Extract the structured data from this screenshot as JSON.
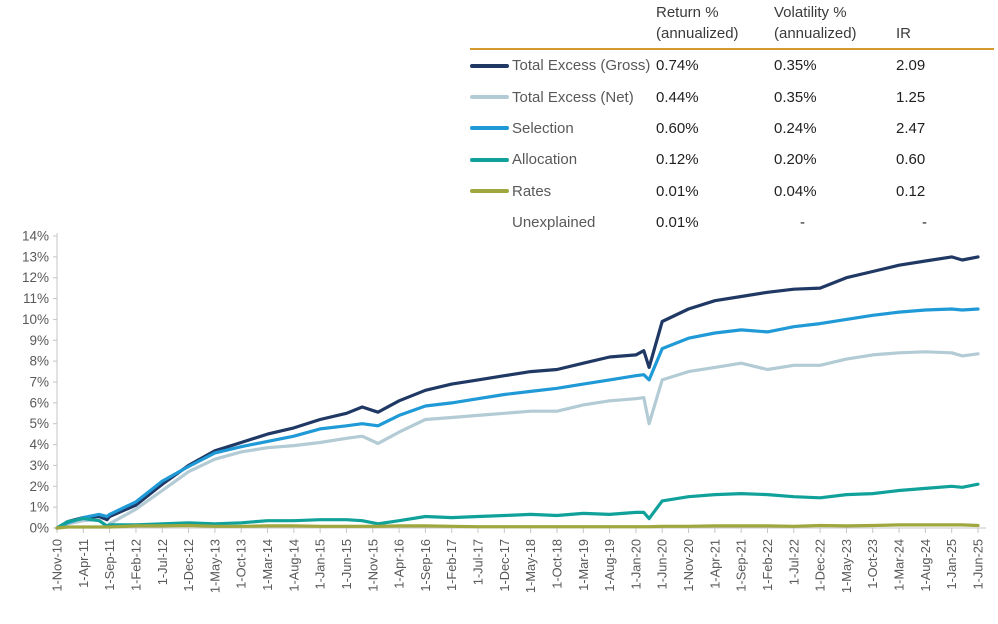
{
  "table": {
    "columns": [
      "Return %\n(annualized)",
      "Volatility %\n(annualized)",
      "IR"
    ],
    "rule_color": "#D6992E",
    "rows": [
      {
        "label": "Total Excess (Gross)",
        "color": "#1F3864",
        "return": "0.74%",
        "volatility": "0.35%",
        "ir": "2.09"
      },
      {
        "label": "Total Excess (Net)",
        "color": "#B3CBD4",
        "return": "0.44%",
        "volatility": "0.35%",
        "ir": "1.25"
      },
      {
        "label": "Selection",
        "color": "#1F9AD7",
        "return": "0.60%",
        "volatility": "0.24%",
        "ir": "2.47"
      },
      {
        "label": "Allocation",
        "color": "#10A29A",
        "return": "0.12%",
        "volatility": "0.20%",
        "ir": "0.60"
      },
      {
        "label": "Rates",
        "color": "#A0A73E",
        "return": "0.01%",
        "volatility": "0.04%",
        "ir": "0.12"
      },
      {
        "label": "Unexplained",
        "color": "",
        "return": "0.01%",
        "volatility": "-",
        "ir": "-"
      }
    ]
  },
  "chart_data": {
    "type": "line",
    "title": "",
    "xlabel": "",
    "ylabel": "",
    "ylim": [
      0,
      14
    ],
    "grid": false,
    "legend_position": "top-right-table",
    "axis_color": "#C6C6C6",
    "tick_label_color": "#595959",
    "ytick_labels": [
      "0%",
      "1%",
      "2%",
      "3%",
      "4%",
      "5%",
      "6%",
      "7%",
      "8%",
      "9%",
      "10%",
      "11%",
      "12%",
      "13%",
      "14%"
    ],
    "xtick_labels": [
      "1-Nov-10",
      "1-Apr-11",
      "1-Sep-11",
      "1-Feb-12",
      "1-Jul-12",
      "1-Dec-12",
      "1-May-13",
      "1-Oct-13",
      "1-Mar-14",
      "1-Aug-14",
      "1-Jan-15",
      "1-Jun-15",
      "1-Nov-15",
      "1-Apr-16",
      "1-Sep-16",
      "1-Feb-17",
      "1-Jul-17",
      "1-Dec-17",
      "1-May-18",
      "1-Oct-18",
      "1-Mar-19",
      "1-Aug-19",
      "1-Jan-20",
      "1-Jun-20",
      "1-Nov-20",
      "1-Apr-21",
      "1-Sep-21",
      "1-Feb-22",
      "1-Jul-22",
      "1-Dec-22",
      "1-May-23",
      "1-Oct-23",
      "1-Mar-24",
      "1-Aug-24",
      "1-Jan-25",
      "1-Jun-25"
    ],
    "xtick_months": [
      0,
      5,
      10,
      15,
      20,
      25,
      30,
      35,
      40,
      45,
      50,
      55,
      60,
      65,
      70,
      75,
      80,
      85,
      90,
      95,
      100,
      105,
      110,
      115,
      120,
      125,
      130,
      135,
      140,
      145,
      150,
      155,
      160,
      165,
      170,
      175
    ],
    "x_unit": "months since 1-Nov-10",
    "x": [
      0,
      2,
      5,
      8,
      9.5,
      10,
      15,
      20,
      25,
      30,
      35,
      40,
      45,
      50,
      55,
      58,
      61,
      65,
      70,
      75,
      80,
      85,
      90,
      95,
      100,
      105,
      110,
      111.5,
      112.5,
      115,
      120,
      125,
      130,
      135,
      140,
      145,
      150,
      155,
      160,
      165,
      170,
      172,
      175
    ],
    "series": [
      {
        "name": "Total Excess (Gross)",
        "color": "#1F3864",
        "values": [
          0,
          0.3,
          0.5,
          0.55,
          0.4,
          0.55,
          1.1,
          2.1,
          3.0,
          3.7,
          4.1,
          4.5,
          4.8,
          5.2,
          5.5,
          5.8,
          5.55,
          6.1,
          6.6,
          6.9,
          7.1,
          7.3,
          7.5,
          7.6,
          7.9,
          8.2,
          8.3,
          8.5,
          7.7,
          9.9,
          10.5,
          10.9,
          11.1,
          11.3,
          11.45,
          11.5,
          12.0,
          12.3,
          12.6,
          12.8,
          13.0,
          12.85,
          13.0
        ]
      },
      {
        "name": "Total Excess (Net)",
        "color": "#B3CBD4",
        "values": [
          0,
          0.2,
          0.35,
          0.4,
          0.05,
          0.2,
          0.9,
          1.8,
          2.7,
          3.3,
          3.65,
          3.85,
          3.95,
          4.1,
          4.3,
          4.4,
          4.05,
          4.6,
          5.2,
          5.3,
          5.4,
          5.5,
          5.6,
          5.6,
          5.9,
          6.1,
          6.2,
          6.25,
          5.0,
          7.1,
          7.5,
          7.7,
          7.9,
          7.6,
          7.8,
          7.8,
          8.1,
          8.3,
          8.4,
          8.45,
          8.4,
          8.25,
          8.35
        ]
      },
      {
        "name": "Selection",
        "color": "#1F9AD7",
        "values": [
          0,
          0.25,
          0.5,
          0.65,
          0.55,
          0.65,
          1.25,
          2.25,
          2.95,
          3.6,
          3.9,
          4.15,
          4.4,
          4.75,
          4.9,
          5.0,
          4.9,
          5.4,
          5.85,
          6.0,
          6.2,
          6.4,
          6.55,
          6.7,
          6.9,
          7.1,
          7.3,
          7.35,
          7.1,
          8.6,
          9.1,
          9.35,
          9.5,
          9.4,
          9.65,
          9.8,
          10.0,
          10.2,
          10.35,
          10.45,
          10.5,
          10.45,
          10.5
        ]
      },
      {
        "name": "Allocation",
        "color": "#10A29A",
        "values": [
          0,
          0.3,
          0.45,
          0.35,
          0.1,
          0.15,
          0.15,
          0.2,
          0.25,
          0.2,
          0.25,
          0.35,
          0.35,
          0.4,
          0.4,
          0.35,
          0.2,
          0.35,
          0.55,
          0.5,
          0.55,
          0.6,
          0.65,
          0.6,
          0.7,
          0.65,
          0.75,
          0.75,
          0.45,
          1.3,
          1.5,
          1.6,
          1.65,
          1.6,
          1.5,
          1.45,
          1.6,
          1.65,
          1.8,
          1.9,
          2.0,
          1.95,
          2.1
        ]
      },
      {
        "name": "Rates",
        "color": "#A0A73E",
        "values": [
          0,
          0.05,
          0.05,
          0.05,
          0.05,
          0.05,
          0.1,
          0.1,
          0.12,
          0.08,
          0.08,
          0.1,
          0.1,
          0.08,
          0.08,
          0.08,
          0.08,
          0.1,
          0.1,
          0.08,
          0.06,
          0.06,
          0.06,
          0.06,
          0.06,
          0.06,
          0.06,
          0.06,
          0.06,
          0.08,
          0.08,
          0.1,
          0.1,
          0.1,
          0.08,
          0.12,
          0.1,
          0.12,
          0.15,
          0.15,
          0.15,
          0.15,
          0.12
        ]
      }
    ]
  }
}
